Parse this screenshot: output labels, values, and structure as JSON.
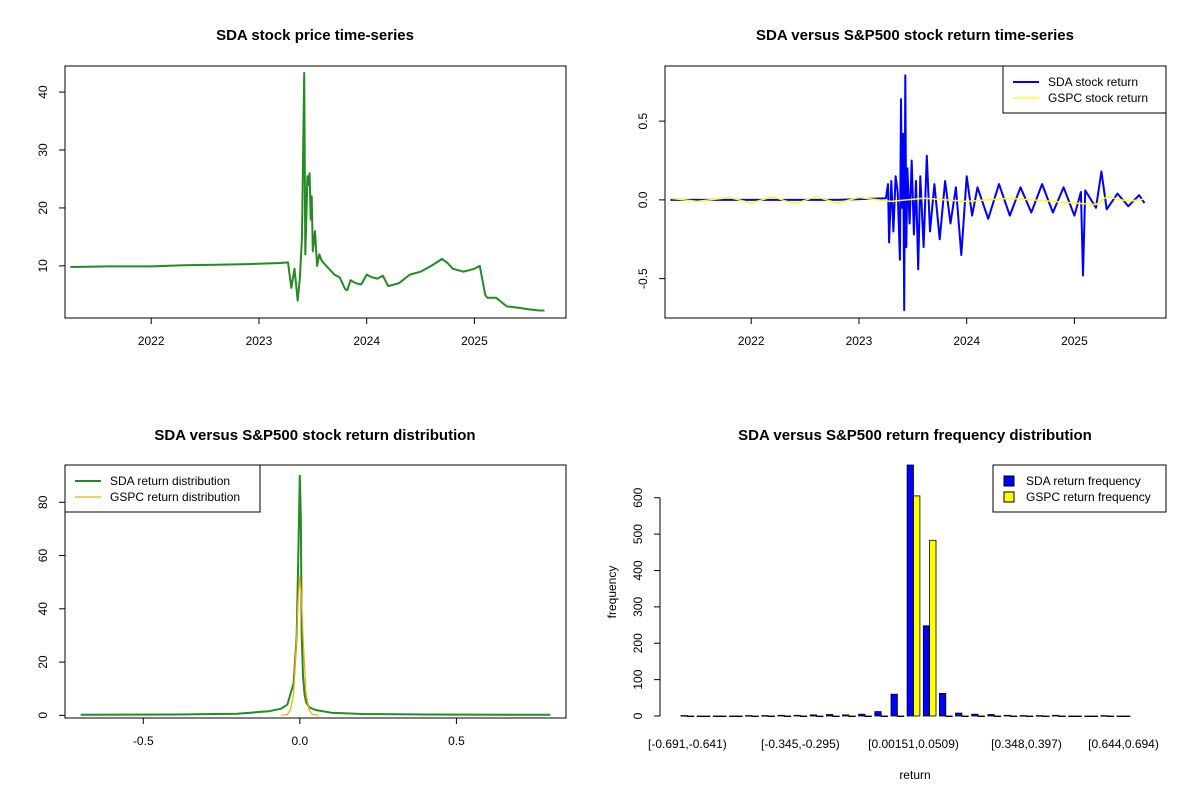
{
  "chart_data": [
    {
      "id": "price",
      "type": "line",
      "title": "SDA stock price time-series",
      "xlabel": "",
      "ylabel": "",
      "xlim": [
        2021.2,
        2025.85
      ],
      "ylim": [
        1.0,
        44.5
      ],
      "x_ticks": [
        2022,
        2023,
        2024,
        2025
      ],
      "x_tick_labels": [
        "2022",
        "2023",
        "2024",
        "2025"
      ],
      "y_ticks": [
        10,
        20,
        30,
        40
      ],
      "y_tick_labels": [
        "10",
        "20",
        "30",
        "40"
      ],
      "series": [
        {
          "color": "#228B22",
          "x": [
            2021.25,
            2021.6,
            2022.0,
            2022.3,
            2022.6,
            2022.9,
            2023.2,
            2023.27,
            2023.3,
            2023.33,
            2023.36,
            2023.38,
            2023.4,
            2023.42,
            2023.43,
            2023.44,
            2023.45,
            2023.46,
            2023.47,
            2023.48,
            2023.49,
            2023.5,
            2023.52,
            2023.54,
            2023.56,
            2023.58,
            2023.6,
            2023.65,
            2023.7,
            2023.75,
            2023.8,
            2023.82,
            2023.85,
            2023.9,
            2023.95,
            2024.0,
            2024.05,
            2024.1,
            2024.15,
            2024.2,
            2024.3,
            2024.4,
            2024.5,
            2024.6,
            2024.7,
            2024.75,
            2024.8,
            2024.9,
            2025.0,
            2025.05,
            2025.1,
            2025.12,
            2025.2,
            2025.3,
            2025.4,
            2025.5,
            2025.6,
            2025.65
          ],
          "y": [
            9.8,
            9.9,
            9.9,
            10.1,
            10.2,
            10.3,
            10.5,
            10.6,
            6.2,
            9.5,
            4.0,
            8.0,
            15.0,
            43.3,
            12.0,
            18.0,
            25.5,
            24.0,
            26.0,
            18.0,
            22.0,
            12.5,
            16.0,
            10.0,
            12.0,
            11.0,
            10.5,
            9.5,
            8.5,
            8.0,
            6.0,
            5.8,
            7.5,
            7.0,
            6.8,
            8.5,
            8.0,
            7.8,
            8.3,
            6.5,
            7.0,
            8.5,
            9.0,
            10.0,
            11.2,
            10.5,
            9.5,
            9.0,
            9.5,
            10.0,
            5.0,
            4.5,
            4.5,
            3.0,
            2.8,
            2.5,
            2.3,
            2.3
          ]
        }
      ]
    },
    {
      "id": "returns",
      "type": "line",
      "title": "SDA versus S&P500 stock return time-series",
      "xlabel": "",
      "ylabel": "",
      "xlim": [
        2021.2,
        2025.85
      ],
      "ylim": [
        -0.75,
        0.85
      ],
      "x_ticks": [
        2022,
        2023,
        2024,
        2025
      ],
      "x_tick_labels": [
        "2022",
        "2023",
        "2024",
        "2025"
      ],
      "y_ticks": [
        -0.5,
        0.0,
        0.5
      ],
      "y_tick_labels": [
        "-0.5",
        "0.0",
        "0.5"
      ],
      "legend_position": "top-right",
      "series": [
        {
          "name": "SDA stock return",
          "color": "#0000FF",
          "x": [
            2021.25,
            2022.0,
            2022.8,
            2023.25,
            2023.27,
            2023.28,
            2023.3,
            2023.32,
            2023.34,
            2023.36,
            2023.38,
            2023.39,
            2023.4,
            2023.41,
            2023.42,
            2023.43,
            2023.44,
            2023.45,
            2023.47,
            2023.49,
            2023.51,
            2023.53,
            2023.55,
            2023.57,
            2023.6,
            2023.63,
            2023.66,
            2023.7,
            2023.75,
            2023.8,
            2023.85,
            2023.9,
            2023.95,
            2024.0,
            2024.05,
            2024.1,
            2024.2,
            2024.3,
            2024.4,
            2024.5,
            2024.6,
            2024.7,
            2024.8,
            2024.9,
            2025.0,
            2025.06,
            2025.08,
            2025.1,
            2025.2,
            2025.25,
            2025.3,
            2025.4,
            2025.5,
            2025.6,
            2025.65
          ],
          "y": [
            0.0,
            0.0,
            0.0,
            0.01,
            0.1,
            -0.27,
            0.12,
            -0.2,
            0.15,
            0.05,
            -0.38,
            0.64,
            -0.05,
            0.42,
            -0.7,
            0.79,
            -0.3,
            0.2,
            -0.15,
            0.25,
            -0.22,
            0.12,
            -0.44,
            0.15,
            -0.3,
            0.28,
            -0.2,
            0.1,
            -0.25,
            0.12,
            -0.15,
            0.08,
            -0.35,
            0.15,
            -0.1,
            0.08,
            -0.12,
            0.1,
            -0.1,
            0.08,
            -0.08,
            0.1,
            -0.08,
            0.08,
            -0.1,
            0.05,
            -0.48,
            0.06,
            -0.05,
            0.18,
            -0.06,
            0.04,
            -0.04,
            0.03,
            -0.02
          ]
        },
        {
          "name": "GSPC stock return",
          "color": "#FFFF00",
          "x": [
            2021.25,
            2021.5,
            2021.8,
            2022.0,
            2022.2,
            2022.4,
            2022.6,
            2022.8,
            2023.0,
            2023.3,
            2023.6,
            2024.0,
            2024.4,
            2024.8,
            2025.2,
            2025.3,
            2025.5,
            2025.65
          ],
          "y": [
            0.01,
            -0.01,
            0.015,
            -0.02,
            0.02,
            -0.025,
            0.02,
            -0.02,
            0.015,
            -0.01,
            0.01,
            -0.01,
            0.01,
            -0.01,
            -0.03,
            0.02,
            -0.01,
            0.005
          ]
        }
      ]
    },
    {
      "id": "density",
      "type": "line",
      "title": "SDA versus S&P500 stock return distribution",
      "xlabel": "",
      "ylabel": "",
      "xlim": [
        -0.75,
        0.85
      ],
      "ylim": [
        -1,
        94
      ],
      "x_ticks": [
        -0.5,
        0.0,
        0.5
      ],
      "x_tick_labels": [
        "-0.5",
        "0.0",
        "0.5"
      ],
      "y_ticks": [
        0,
        20,
        40,
        60,
        80
      ],
      "y_tick_labels": [
        "0",
        "20",
        "40",
        "60",
        "80"
      ],
      "legend_position": "top-left",
      "series": [
        {
          "name": "SDA return distribution",
          "color": "#228B22",
          "x": [
            -0.7,
            -0.4,
            -0.2,
            -0.1,
            -0.06,
            -0.04,
            -0.02,
            -0.01,
            -0.005,
            0.0,
            0.003,
            0.006,
            0.01,
            0.015,
            0.02,
            0.03,
            0.05,
            0.1,
            0.2,
            0.4,
            0.8
          ],
          "y": [
            0.2,
            0.3,
            0.6,
            1.5,
            2.5,
            4.0,
            12.0,
            30.0,
            60.0,
            90.0,
            75.0,
            30.0,
            15.0,
            8.0,
            5.0,
            3.0,
            2.0,
            1.0,
            0.5,
            0.3,
            0.2
          ]
        },
        {
          "name": "GSPC return distribution",
          "color": "#FFA500",
          "x": [
            -0.06,
            -0.04,
            -0.03,
            -0.02,
            -0.01,
            -0.005,
            0.0,
            0.005,
            0.01,
            0.02,
            0.03,
            0.04,
            0.06
          ],
          "y": [
            0.0,
            0.3,
            2.0,
            8.0,
            30.0,
            45.0,
            52.0,
            45.0,
            30.0,
            8.0,
            2.0,
            0.3,
            0.0
          ]
        }
      ]
    },
    {
      "id": "freq",
      "type": "bar",
      "title": "SDA versus S&P500 return frequency distribution",
      "xlabel": "return",
      "ylabel": "frequency",
      "ylim": [
        0,
        690
      ],
      "y_ticks": [
        0,
        100,
        200,
        300,
        400,
        500,
        600
      ],
      "y_tick_labels": [
        "0",
        "100",
        "200",
        "300",
        "400",
        "500",
        "600"
      ],
      "x_tick_labels": [
        {
          "bin": 0,
          "label": "[-0.691,-0.641)"
        },
        {
          "bin": 7,
          "label": "[-0.345,-0.295)"
        },
        {
          "bin": 14,
          "label": "[0.00151,0.0509)"
        },
        {
          "bin": 21,
          "label": "[0.348,0.397)"
        },
        {
          "bin": 27,
          "label": "[0.644,0.694)"
        }
      ],
      "legend_position": "top-right",
      "series": [
        {
          "name": "SDA return frequency",
          "color": "#0000FF",
          "values": [
            1,
            0,
            0,
            0,
            1,
            1,
            2,
            2,
            3,
            4,
            3,
            5,
            12,
            60,
            700,
            248,
            62,
            8,
            5,
            4,
            2,
            1,
            1,
            2,
            0,
            0,
            1,
            0
          ]
        },
        {
          "name": "GSPC return frequency",
          "color": "#FFFF00",
          "values": [
            0,
            0,
            0,
            0,
            0,
            0,
            0,
            0,
            0,
            0,
            0,
            0,
            0,
            0,
            605,
            483,
            0,
            0,
            0,
            0,
            0,
            0,
            0,
            0,
            0,
            0,
            0,
            0
          ]
        }
      ]
    }
  ]
}
